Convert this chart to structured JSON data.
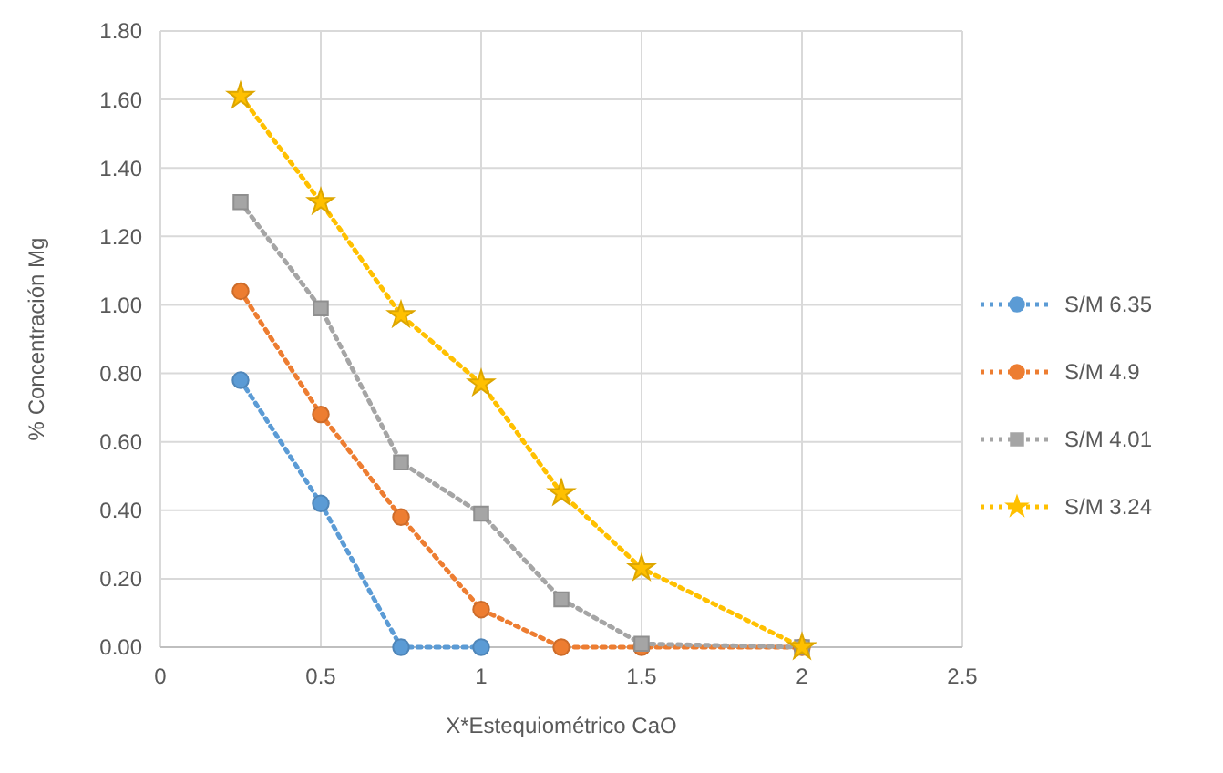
{
  "chart_data": {
    "type": "line",
    "xlabel": "X*Estequiométrico CaO",
    "ylabel": "% Concentración Mg",
    "xlim": [
      0,
      2.5
    ],
    "xticks": [
      0,
      0.5,
      1,
      1.5,
      2,
      2.5
    ],
    "ylim": [
      0,
      1.8
    ],
    "yticks": [
      {
        "value": 0,
        "label": "0.00"
      },
      {
        "value": 0.2,
        "label": "0.20"
      },
      {
        "value": 0.4,
        "label": "0.40"
      },
      {
        "value": 0.6,
        "label": "0.60"
      },
      {
        "value": 0.8,
        "label": "0.80"
      },
      {
        "value": 1,
        "label": "1.00"
      },
      {
        "value": 1.2,
        "label": "1.20"
      },
      {
        "value": 1.4,
        "label": "1.40"
      },
      {
        "value": 1.6,
        "label": "1.60"
      },
      {
        "value": 1.8,
        "label": "1.80"
      }
    ],
    "grid": true,
    "legend": "right",
    "line_style": "dotted",
    "series": [
      {
        "name": "S/M 6.35",
        "color": "#5b9bd5",
        "marker": "circle",
        "x": [
          0.25,
          0.5,
          0.75,
          1
        ],
        "values": [
          0.78,
          0.42,
          0,
          0
        ]
      },
      {
        "name": "S/M 4.9",
        "color": "#ed7d31",
        "marker": "circle",
        "x": [
          0.25,
          0.5,
          0.75,
          1,
          1.25,
          1.5,
          2
        ],
        "values": [
          1.04,
          0.68,
          0.38,
          0.11,
          0,
          0,
          0
        ]
      },
      {
        "name": "S/M 4.01",
        "color": "#a5a5a5",
        "marker": "square",
        "x": [
          0.25,
          0.5,
          0.75,
          1,
          1.25,
          1.5,
          2
        ],
        "values": [
          1.3,
          0.99,
          0.54,
          0.39,
          0.14,
          0.01,
          0
        ]
      },
      {
        "name": "S/M 3.24",
        "color": "#ffc000",
        "marker": "star",
        "x": [
          0.25,
          0.5,
          0.75,
          1,
          1.25,
          1.5,
          2
        ],
        "values": [
          1.61,
          1.3,
          0.97,
          0.77,
          0.45,
          0.23,
          0
        ]
      }
    ]
  }
}
